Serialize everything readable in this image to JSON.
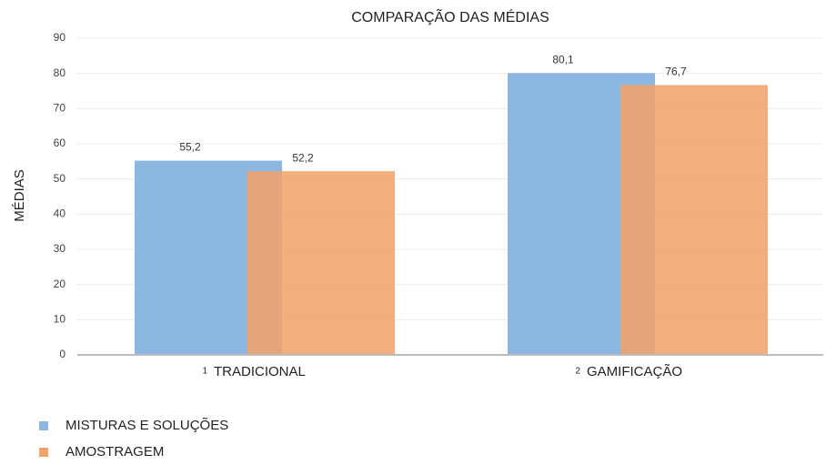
{
  "chart_data": {
    "type": "bar",
    "title": "COMPARAÇÃO DAS MÉDIAS",
    "y_label": "MÉDIAS",
    "categories": [
      "TRADICIONAL",
      "GAMIFICAÇÃO"
    ],
    "category_numbers": [
      "1",
      "2"
    ],
    "series": [
      {
        "name": "MISTURAS E SOLUÇÕES",
        "color": "#8cb7e1",
        "values": [
          55.2,
          80.1
        ],
        "value_labels": [
          "55,2",
          "80,1"
        ]
      },
      {
        "name": "AMOSTRAGEM",
        "color": "#f0a36b",
        "values": [
          52.2,
          76.7
        ],
        "value_labels": [
          "52,2",
          "76,7"
        ]
      }
    ],
    "ylim": [
      0,
      90
    ],
    "yticks": [
      0,
      10,
      20,
      30,
      40,
      50,
      60,
      70,
      80,
      90
    ],
    "grid": true,
    "legend": "bottom-left"
  }
}
